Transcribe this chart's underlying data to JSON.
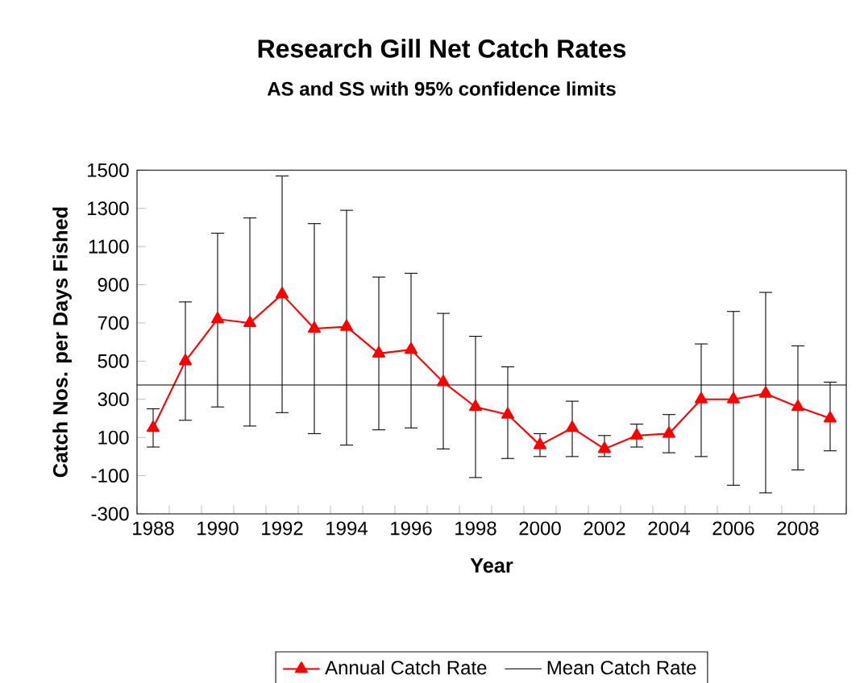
{
  "chart_data": {
    "type": "line",
    "title": "Research Gill Net Catch Rates",
    "subtitle": "AS and SS with 95% confidence limits",
    "xlabel": "Year",
    "ylabel": "Catch Nos. per Days Fished",
    "categories": [
      "1988",
      null,
      "1990",
      null,
      "1992",
      null,
      "1994",
      null,
      "1996",
      null,
      "1998",
      null,
      "2000",
      null,
      "2002",
      null,
      "2004",
      null,
      "2006",
      null,
      "2008",
      null
    ],
    "series": [
      {
        "name": "Annual Catch Rate",
        "color": "#ff0000",
        "values": [
          150,
          500,
          720,
          700,
          850,
          670,
          680,
          540,
          560,
          390,
          260,
          220,
          60,
          150,
          40,
          110,
          120,
          300,
          300,
          330,
          260,
          200
        ],
        "errors": [
          [
            50,
            250
          ],
          [
            190,
            810
          ],
          [
            260,
            1170
          ],
          [
            160,
            1250
          ],
          [
            230,
            1470
          ],
          [
            120,
            1220
          ],
          [
            60,
            1290
          ],
          [
            140,
            940
          ],
          [
            150,
            960
          ],
          [
            40,
            750
          ],
          [
            -110,
            630
          ],
          [
            -10,
            470
          ],
          [
            0,
            120
          ],
          [
            0,
            290
          ],
          [
            0,
            110
          ],
          [
            50,
            170
          ],
          [
            20,
            220
          ],
          [
            0,
            590
          ],
          [
            -150,
            760
          ],
          [
            -190,
            860
          ],
          [
            -70,
            580
          ],
          [
            30,
            390
          ]
        ]
      }
    ],
    "ref_lines": [
      {
        "axis": "y",
        "value": 375,
        "label": "Mean Catch Rate",
        "color": "#000000"
      }
    ],
    "ylim": [
      -300,
      1500
    ],
    "yticks": [
      -300,
      -100,
      100,
      300,
      500,
      700,
      900,
      1100,
      1300,
      1500
    ],
    "grid": false,
    "legend": "bottom",
    "marker": "triangle",
    "line_style": "solid"
  }
}
